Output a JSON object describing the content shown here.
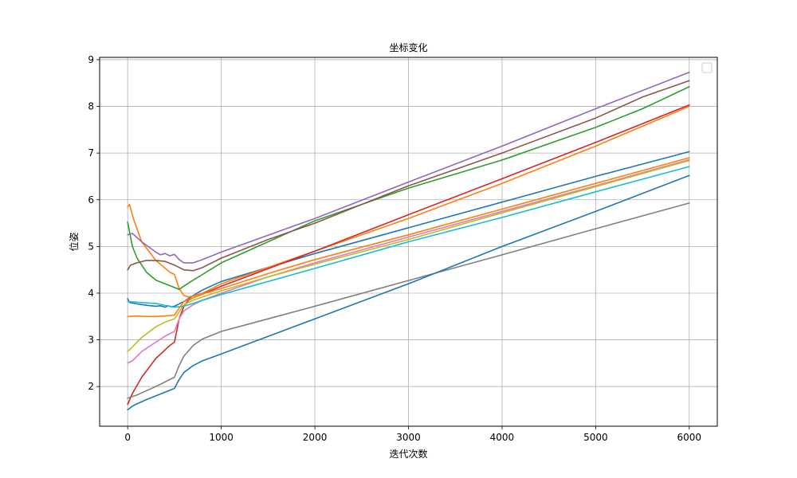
{
  "chart_data": {
    "type": "line",
    "title": "坐标变化",
    "xlabel": "迭代次数",
    "ylabel": "位姿",
    "xlim": [
      -300,
      6300
    ],
    "ylim": [
      1.15,
      9.05
    ],
    "x_ticks": [
      0,
      1000,
      2000,
      3000,
      4000,
      5000,
      6000
    ],
    "y_ticks": [
      2,
      3,
      4,
      5,
      6,
      7,
      8,
      9
    ],
    "grid": true,
    "legend": {
      "placement": "top-right",
      "entries": []
    },
    "series": [
      {
        "color": "#1f77b4",
        "points": [
          [
            0,
            3.88
          ],
          [
            20,
            3.8
          ],
          [
            100,
            3.77
          ],
          [
            200,
            3.74
          ],
          [
            300,
            3.72
          ],
          [
            350,
            3.73
          ],
          [
            400,
            3.7
          ],
          [
            430,
            3.73
          ],
          [
            460,
            3.71
          ],
          [
            500,
            3.72
          ],
          [
            600,
            3.82
          ],
          [
            700,
            3.95
          ],
          [
            800,
            4.07
          ],
          [
            1000,
            4.25
          ],
          [
            1500,
            4.55
          ],
          [
            2000,
            4.85
          ],
          [
            3000,
            5.4
          ],
          [
            4000,
            5.95
          ],
          [
            5000,
            6.5
          ],
          [
            6000,
            7.03
          ]
        ]
      },
      {
        "color": "#ff7f0e",
        "points": [
          [
            0,
            5.85
          ],
          [
            20,
            5.9
          ],
          [
            60,
            5.6
          ],
          [
            150,
            5.1
          ],
          [
            300,
            4.7
          ],
          [
            450,
            4.45
          ],
          [
            500,
            4.4
          ],
          [
            550,
            4.1
          ],
          [
            600,
            3.95
          ],
          [
            650,
            3.92
          ],
          [
            700,
            3.94
          ],
          [
            800,
            4.0
          ],
          [
            1000,
            4.2
          ],
          [
            2000,
            4.9
          ],
          [
            3000,
            5.6
          ],
          [
            4000,
            6.35
          ],
          [
            5000,
            7.15
          ],
          [
            6000,
            8.0
          ]
        ]
      },
      {
        "color": "#2ca02c",
        "points": [
          [
            0,
            5.52
          ],
          [
            50,
            5.0
          ],
          [
            100,
            4.75
          ],
          [
            200,
            4.45
          ],
          [
            300,
            4.28
          ],
          [
            400,
            4.2
          ],
          [
            500,
            4.12
          ],
          [
            550,
            4.08
          ],
          [
            600,
            4.15
          ],
          [
            700,
            4.28
          ],
          [
            800,
            4.4
          ],
          [
            1000,
            4.65
          ],
          [
            1500,
            5.1
          ],
          [
            2000,
            5.55
          ],
          [
            3000,
            6.25
          ],
          [
            4000,
            6.85
          ],
          [
            5000,
            7.55
          ],
          [
            5500,
            7.95
          ],
          [
            6000,
            8.42
          ]
        ]
      },
      {
        "color": "#d62728",
        "points": [
          [
            0,
            1.62
          ],
          [
            50,
            1.85
          ],
          [
            150,
            2.2
          ],
          [
            300,
            2.6
          ],
          [
            450,
            2.88
          ],
          [
            500,
            2.95
          ],
          [
            550,
            3.45
          ],
          [
            600,
            3.72
          ],
          [
            650,
            3.85
          ],
          [
            700,
            3.9
          ],
          [
            800,
            3.98
          ],
          [
            1000,
            4.15
          ],
          [
            2000,
            4.9
          ],
          [
            3000,
            5.68
          ],
          [
            4000,
            6.45
          ],
          [
            5000,
            7.23
          ],
          [
            6000,
            8.03
          ]
        ]
      },
      {
        "color": "#9467bd",
        "points": [
          [
            0,
            5.25
          ],
          [
            50,
            5.28
          ],
          [
            150,
            5.1
          ],
          [
            300,
            4.88
          ],
          [
            350,
            4.82
          ],
          [
            400,
            4.85
          ],
          [
            450,
            4.8
          ],
          [
            500,
            4.83
          ],
          [
            550,
            4.72
          ],
          [
            600,
            4.65
          ],
          [
            700,
            4.65
          ],
          [
            800,
            4.72
          ],
          [
            1000,
            4.88
          ],
          [
            2000,
            5.6
          ],
          [
            3000,
            6.38
          ],
          [
            4000,
            7.15
          ],
          [
            5000,
            7.95
          ],
          [
            6000,
            8.73
          ]
        ]
      },
      {
        "color": "#8c564b",
        "points": [
          [
            0,
            4.5
          ],
          [
            30,
            4.6
          ],
          [
            100,
            4.65
          ],
          [
            200,
            4.7
          ],
          [
            300,
            4.7
          ],
          [
            400,
            4.68
          ],
          [
            500,
            4.6
          ],
          [
            550,
            4.55
          ],
          [
            600,
            4.5
          ],
          [
            700,
            4.48
          ],
          [
            800,
            4.55
          ],
          [
            1000,
            4.75
          ],
          [
            1500,
            5.15
          ],
          [
            2000,
            5.5
          ],
          [
            3000,
            6.3
          ],
          [
            4000,
            7.0
          ],
          [
            5000,
            7.75
          ],
          [
            5500,
            8.2
          ],
          [
            6000,
            8.55
          ]
        ]
      },
      {
        "color": "#e377c2",
        "points": [
          [
            0,
            2.5
          ],
          [
            50,
            2.55
          ],
          [
            150,
            2.75
          ],
          [
            300,
            2.95
          ],
          [
            400,
            3.08
          ],
          [
            500,
            3.18
          ],
          [
            550,
            3.45
          ],
          [
            600,
            3.62
          ],
          [
            700,
            3.75
          ],
          [
            800,
            3.85
          ],
          [
            1000,
            4.0
          ],
          [
            1500,
            4.35
          ],
          [
            2000,
            4.65
          ],
          [
            3000,
            5.2
          ],
          [
            4000,
            5.75
          ],
          [
            5000,
            6.3
          ],
          [
            6000,
            6.86
          ]
        ]
      },
      {
        "color": "#7f7f7f",
        "points": [
          [
            0,
            1.75
          ],
          [
            100,
            1.82
          ],
          [
            300,
            2.0
          ],
          [
            500,
            2.2
          ],
          [
            550,
            2.45
          ],
          [
            600,
            2.65
          ],
          [
            700,
            2.88
          ],
          [
            800,
            3.02
          ],
          [
            1000,
            3.18
          ],
          [
            1500,
            3.45
          ],
          [
            2000,
            3.72
          ],
          [
            3000,
            4.27
          ],
          [
            4000,
            4.82
          ],
          [
            5000,
            5.38
          ],
          [
            6000,
            5.93
          ]
        ]
      },
      {
        "color": "#bcbd22",
        "points": [
          [
            0,
            2.75
          ],
          [
            50,
            2.85
          ],
          [
            150,
            3.05
          ],
          [
            300,
            3.28
          ],
          [
            400,
            3.38
          ],
          [
            500,
            3.45
          ],
          [
            550,
            3.6
          ],
          [
            600,
            3.75
          ],
          [
            700,
            3.85
          ],
          [
            800,
            3.92
          ],
          [
            1000,
            4.05
          ],
          [
            1500,
            4.35
          ],
          [
            2000,
            4.62
          ],
          [
            3000,
            5.15
          ],
          [
            4000,
            5.72
          ],
          [
            5000,
            6.28
          ],
          [
            6000,
            6.84
          ]
        ]
      },
      {
        "color": "#17becf",
        "points": [
          [
            0,
            3.82
          ],
          [
            300,
            3.78
          ],
          [
            500,
            3.7
          ],
          [
            600,
            3.72
          ],
          [
            700,
            3.78
          ],
          [
            800,
            3.85
          ],
          [
            1000,
            3.97
          ],
          [
            2000,
            4.53
          ],
          [
            3000,
            5.1
          ],
          [
            4000,
            5.62
          ],
          [
            5000,
            6.17
          ],
          [
            6000,
            6.71
          ]
        ]
      },
      {
        "color": "#1f77b4",
        "points": [
          [
            0,
            1.5
          ],
          [
            50,
            1.58
          ],
          [
            100,
            1.63
          ],
          [
            200,
            1.72
          ],
          [
            300,
            1.8
          ],
          [
            400,
            1.88
          ],
          [
            500,
            1.96
          ],
          [
            550,
            2.15
          ],
          [
            600,
            2.3
          ],
          [
            700,
            2.45
          ],
          [
            800,
            2.55
          ],
          [
            1000,
            2.7
          ],
          [
            2000,
            3.45
          ],
          [
            3000,
            4.2
          ],
          [
            4000,
            5.0
          ],
          [
            5000,
            5.75
          ],
          [
            6000,
            6.52
          ]
        ]
      },
      {
        "color": "#ff7f0e",
        "points": [
          [
            0,
            3.5
          ],
          [
            100,
            3.51
          ],
          [
            200,
            3.5
          ],
          [
            300,
            3.5
          ],
          [
            400,
            3.51
          ],
          [
            500,
            3.53
          ],
          [
            550,
            3.68
          ],
          [
            600,
            3.82
          ],
          [
            700,
            3.9
          ],
          [
            800,
            3.98
          ],
          [
            1000,
            4.1
          ],
          [
            1500,
            4.42
          ],
          [
            2000,
            4.72
          ],
          [
            3000,
            5.25
          ],
          [
            4000,
            5.8
          ],
          [
            5000,
            6.35
          ],
          [
            6000,
            6.9
          ]
        ]
      }
    ]
  }
}
